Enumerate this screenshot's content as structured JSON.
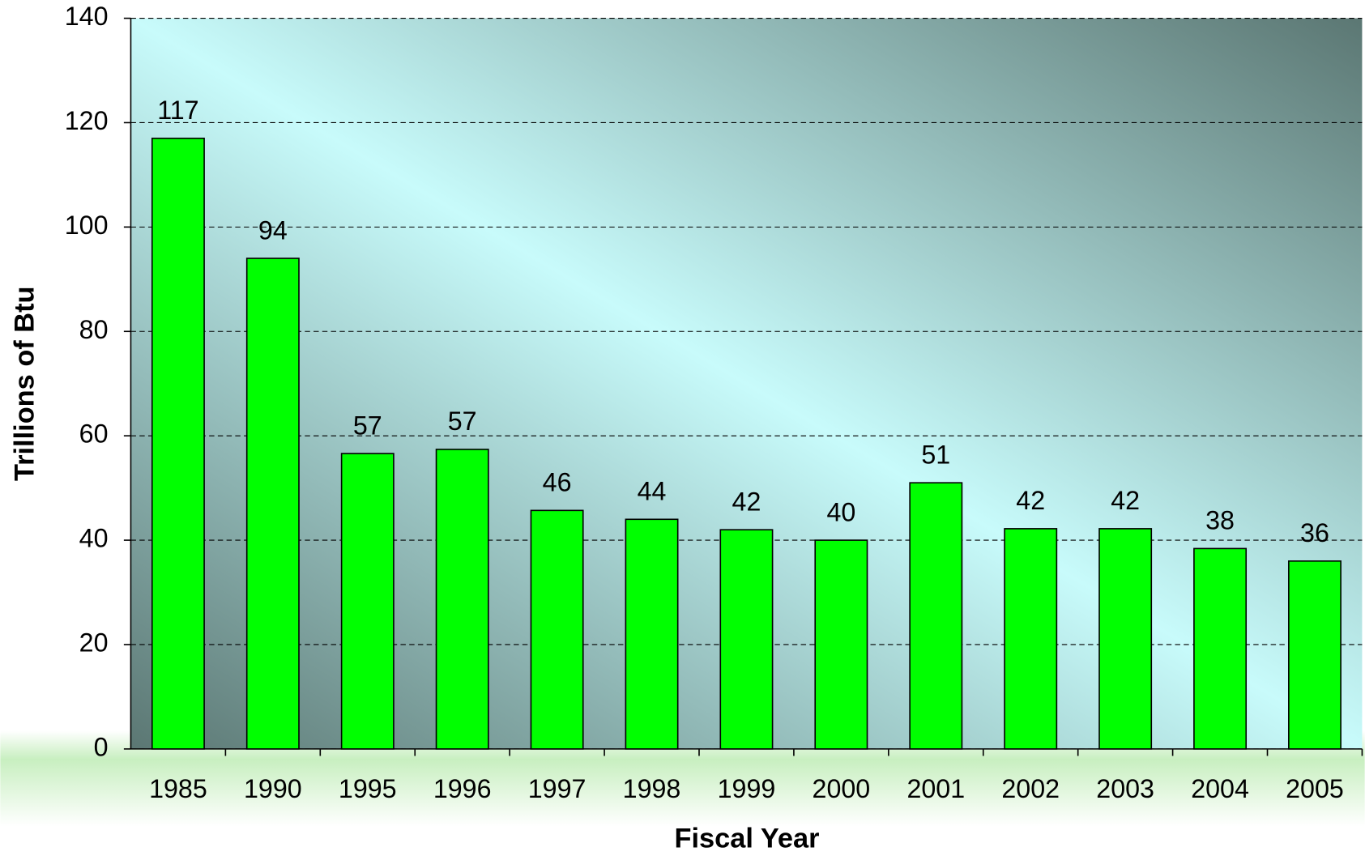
{
  "chart_data": {
    "type": "bar",
    "x_label": "Fiscal Year",
    "y_label": "Trillions of Btu",
    "categories": [
      "1985",
      "1990",
      "1995",
      "1996",
      "1997",
      "1998",
      "1999",
      "2000",
      "2001",
      "2002",
      "2003",
      "2004",
      "2005"
    ],
    "values": [
      117,
      94,
      56.6,
      57.4,
      45.7,
      44,
      42,
      40,
      51,
      42.2,
      42.2,
      38.4,
      36
    ],
    "value_labels": [
      "117",
      "94",
      "57",
      "57",
      "46",
      "44",
      "42",
      "40",
      "51",
      "42",
      "42",
      "38",
      "36"
    ],
    "color": "#00ff00",
    "ylim": [
      0,
      140
    ],
    "yticks": [
      0,
      20,
      40,
      60,
      80,
      100,
      120,
      140
    ],
    "grid": true
  }
}
